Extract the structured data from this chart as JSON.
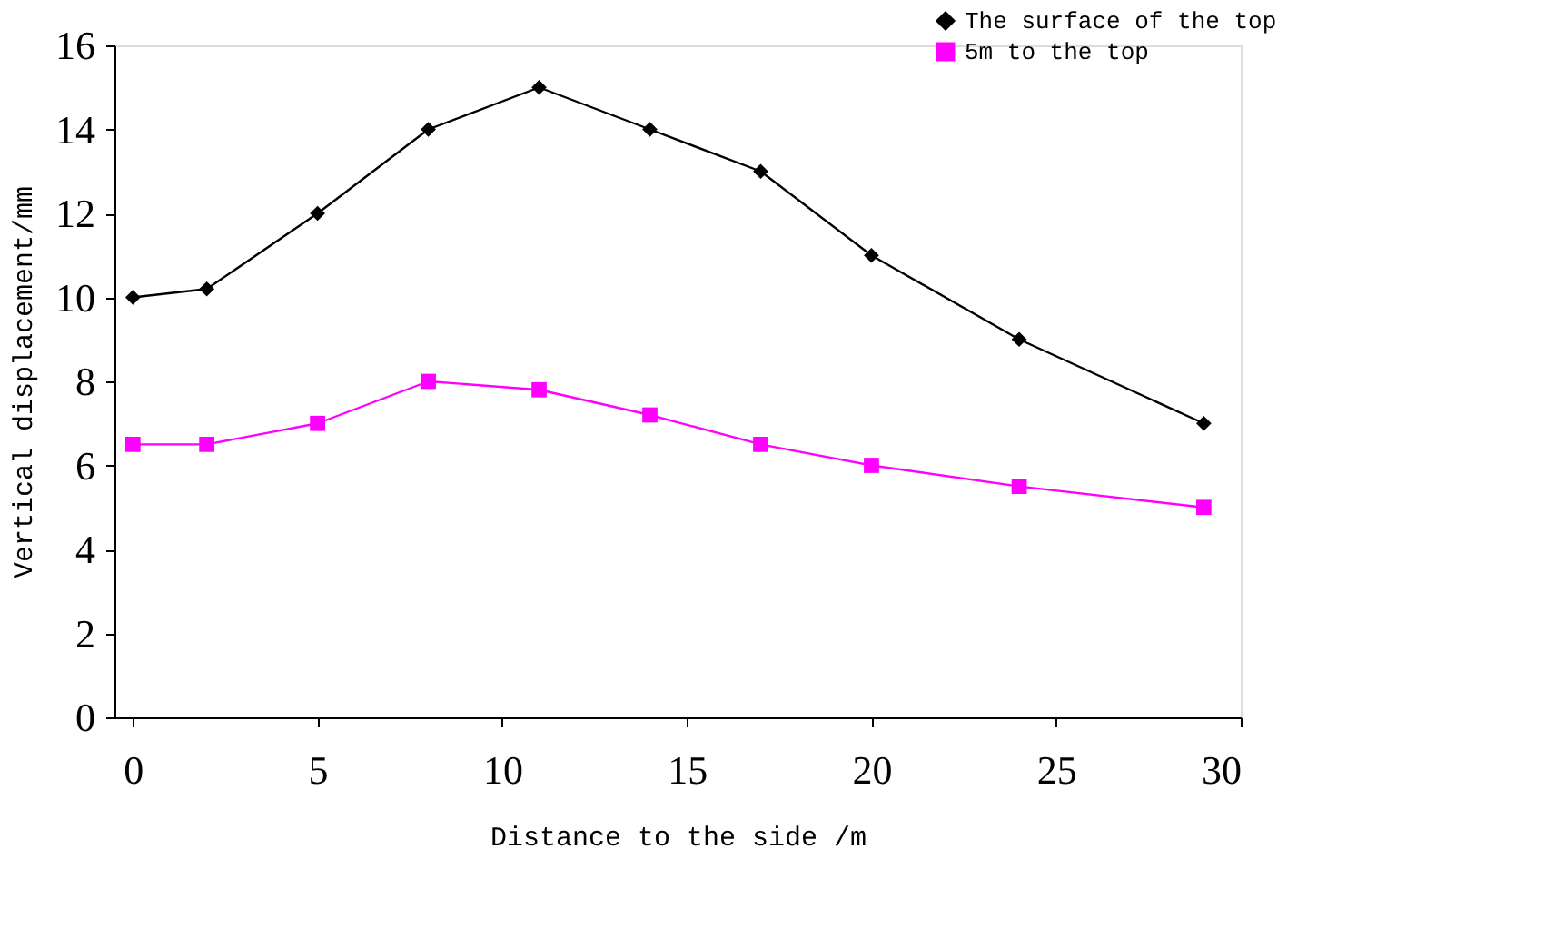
{
  "chart_data": {
    "type": "line",
    "xlabel": "Distance to the side /m",
    "ylabel": "Vertical displacement/mm",
    "x": [
      0,
      2,
      5,
      8,
      11,
      14,
      17,
      20,
      24,
      29
    ],
    "series": [
      {
        "name": "The surface of the top",
        "color": "#000000",
        "marker": "diamond",
        "values": [
          10,
          10.2,
          12,
          14,
          15,
          14,
          13,
          11,
          9,
          7
        ]
      },
      {
        "name": "5m to the top",
        "color": "#ff00ff",
        "marker": "square",
        "values": [
          6.5,
          6.5,
          7,
          8,
          7.8,
          7.2,
          6.5,
          6,
          5.5,
          5
        ]
      }
    ],
    "xlim": [
      -0.5,
      30
    ],
    "xticks": [
      0,
      5,
      10,
      15,
      20,
      25,
      30
    ],
    "ylim": [
      0,
      16
    ],
    "yticks": [
      0,
      2,
      4,
      6,
      8,
      10,
      12,
      14,
      16
    ],
    "grid": false,
    "legend": "top right",
    "line_style": "solid"
  }
}
